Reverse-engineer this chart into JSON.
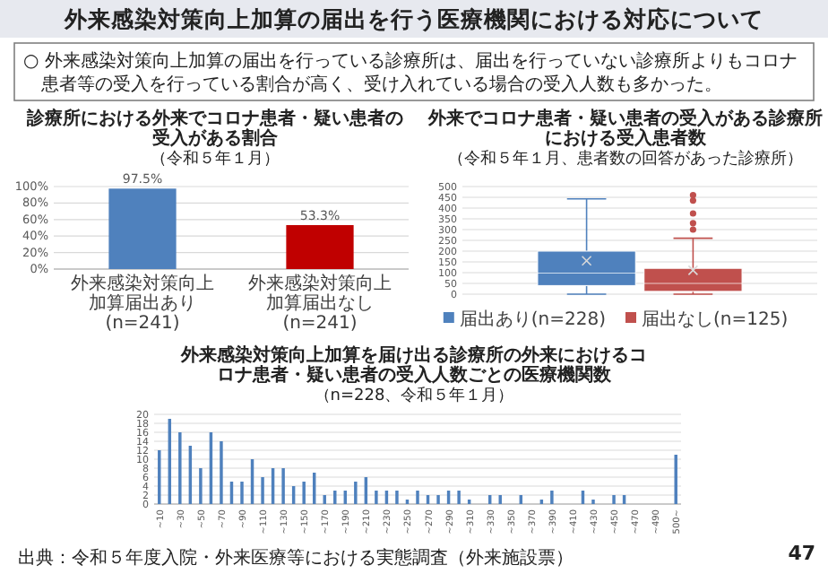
{
  "chart_data": [
    {
      "type": "other",
      "title": "外来感染対策向上加算の届出を行う医療機関における対応について",
      "annotations": [
        "○ 外来感染対策向上加算の届出を行っている診療所は、届出を行っていない診療所よりもコロナ患者等の受入を行っている割合が高く、受け入れている場合の受入人数も多かった。",
        "47"
      ]
    },
    {
      "type": "bar",
      "title": "診療所における外来でコロナ患者・疑い患者の受入がある割合",
      "subtitle": "（令和５年１月）",
      "categories": [
        "外来感染対策向上加算届出あり(n=241)",
        "外来感染対策向上加算届出なし(n=241)"
      ],
      "values": [
        97.5,
        53.3
      ],
      "colors": [
        "#4f81bd",
        "#c00000"
      ],
      "value_labels": [
        "97.5%",
        "53.3%"
      ],
      "ylim": [
        0,
        100
      ],
      "yticks": [
        {
          "value": 0,
          "label": "0%"
        },
        {
          "value": 20,
          "label": "20%"
        },
        {
          "value": 40,
          "label": "40%"
        },
        {
          "value": 60,
          "label": "60%"
        },
        {
          "value": 80,
          "label": "80%"
        },
        {
          "value": 100,
          "label": "100%"
        }
      ],
      "grid": "y"
    },
    {
      "type": "box",
      "title": "外来でコロナ患者・疑い患者の受入がある診療所における受入患者数",
      "subtitle": "（令和５年１月、患者数の回答があった診療所）",
      "categories": [
        null
      ],
      "ylim": [
        0,
        500
      ],
      "yticks": [
        0,
        50,
        100,
        150,
        200,
        250,
        300,
        350,
        400,
        450,
        500
      ],
      "grid": "y",
      "legend": "bottom",
      "series": [
        {
          "name": "届出あり(n=228)",
          "color": "#4f81bd",
          "boxes": [
            {
              "low": 0,
              "q1": 40,
              "median": 98,
              "q3": 200,
              "high": 443,
              "mean": 155
            }
          ]
        },
        {
          "name": "届出なし(n=125)",
          "color": "#c0504d",
          "boxes": [
            {
              "low": 0,
              "q1": 13,
              "median": 50,
              "q3": 120,
              "high": 260,
              "mean": 111,
              "outliers": [
                300,
                330,
                375,
                435,
                460
              ]
            }
          ]
        }
      ]
    },
    {
      "type": "bar",
      "title": "外来感染対策向上加算を届け出る診療所の外来におけるコロナ患者・疑い患者の受入人数ごとの医療機関数",
      "subtitle": "（n=228、令和５年１月）",
      "categories": [
        "~10",
        null,
        "~30",
        null,
        "~50",
        null,
        "~70",
        null,
        "~90",
        null,
        "~110",
        null,
        "~130",
        null,
        "~150",
        null,
        "~170",
        null,
        "~190",
        null,
        "~210",
        null,
        "~230",
        null,
        "~250",
        null,
        "~270",
        null,
        "~290",
        null,
        "~310",
        null,
        "~330",
        null,
        "~350",
        null,
        "~370",
        null,
        "~390",
        null,
        "~410",
        null,
        "~430",
        null,
        "~450",
        null,
        "~470",
        null,
        "~490",
        null,
        "500~"
      ],
      "values": [
        12,
        19,
        16,
        13,
        8,
        16,
        14,
        5,
        5,
        10,
        6,
        8,
        8,
        4,
        5,
        7,
        2,
        3,
        3,
        5,
        6,
        3,
        3,
        3,
        1,
        3,
        2,
        2,
        3,
        3,
        1,
        0,
        2,
        2,
        0,
        2,
        0,
        1,
        3,
        0,
        0,
        3,
        1,
        0,
        2,
        2,
        0,
        0,
        0,
        0,
        11
      ],
      "color": "#4f81bd",
      "ylim": [
        0,
        20
      ],
      "yticks": [
        0,
        2,
        4,
        6,
        8,
        10,
        12,
        14,
        16,
        18,
        20
      ],
      "grid": "y",
      "annotations": [
        "出典：令和５年度入院・外来医療等における実態調査（外来施設票）"
      ]
    }
  ]
}
